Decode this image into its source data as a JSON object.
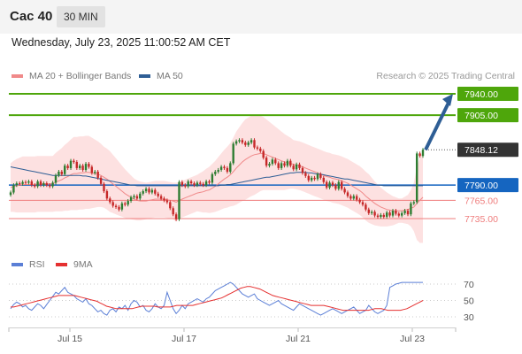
{
  "header": {
    "instrument": "Cac 40",
    "interval": "30 MIN"
  },
  "datetime": "Wednesday, July 23, 2025 11:00:52 AM CET",
  "legend": {
    "bollinger": {
      "label": "MA 20 + Bollinger Bands",
      "color": "#f08a8a"
    },
    "ma50": {
      "label": "MA 50",
      "color": "#2e5e95"
    },
    "rsi": {
      "label": "RSI",
      "color": "#5b7fd6"
    },
    "rsi_ma": {
      "label": "9MA",
      "color": "#e53030"
    }
  },
  "credit": "Research © 2025 Trading Central",
  "colors": {
    "up": "#2e7d32",
    "down": "#c62828",
    "target": "#4ea60b",
    "pivot": "#1565c0",
    "support": "#ef7d7d",
    "arrow": "#2e5e95"
  },
  "chart_data": [
    {
      "type": "candlestick",
      "title": "Cac 40",
      "x_ticks": [
        "Jul 15",
        "Jul 17",
        "Jul 21",
        "Jul 23"
      ],
      "ylim": [
        7700,
        7970
      ],
      "levels": [
        {
          "label": "7940.00",
          "value": 7940,
          "kind": "target"
        },
        {
          "label": "7905.00",
          "value": 7905,
          "kind": "target"
        },
        {
          "label": "7848.12",
          "value": 7848.12,
          "kind": "current"
        },
        {
          "label": "7790.00",
          "value": 7790,
          "kind": "pivot"
        },
        {
          "label": "7765.00",
          "value": 7765,
          "kind": "support"
        },
        {
          "label": "7735.00",
          "value": 7735,
          "kind": "support"
        }
      ],
      "closes": [
        7778,
        7790,
        7793,
        7792,
        7795,
        7794,
        7796,
        7790,
        7788,
        7796,
        7790,
        7793,
        7790,
        7788,
        7794,
        7806,
        7812,
        7808,
        7822,
        7818,
        7830,
        7828,
        7818,
        7822,
        7815,
        7825,
        7820,
        7810,
        7812,
        7802,
        7792,
        7780,
        7768,
        7762,
        7756,
        7754,
        7750,
        7760,
        7758,
        7764,
        7770,
        7772,
        7768,
        7776,
        7780,
        7784,
        7778,
        7782,
        7776,
        7772,
        7768,
        7765,
        7762,
        7752,
        7742,
        7734,
        7795,
        7790,
        7788,
        7796,
        7793,
        7790,
        7794,
        7792,
        7790,
        7796,
        7794,
        7808,
        7812,
        7815,
        7820,
        7818,
        7812,
        7826,
        7858,
        7862,
        7864,
        7860,
        7856,
        7860,
        7864,
        7852,
        7850,
        7846,
        7835,
        7822,
        7825,
        7832,
        7826,
        7818,
        7826,
        7822,
        7830,
        7822,
        7816,
        7824,
        7818,
        7810,
        7805,
        7798,
        7802,
        7800,
        7808,
        7802,
        7795,
        7786,
        7794,
        7790,
        7784,
        7795,
        7784,
        7778,
        7772,
        7768,
        7772,
        7766,
        7762,
        7758,
        7750,
        7744,
        7746,
        7740,
        7738,
        7741,
        7738,
        7745,
        7740,
        7748,
        7743,
        7740,
        7744,
        7748,
        7742,
        7760,
        7762,
        7842,
        7838,
        7848
      ],
      "ma20": [
        7786,
        7788,
        7789,
        7790,
        7791,
        7791,
        7791,
        7791,
        7791,
        7792,
        7792,
        7792,
        7792,
        7792,
        7792,
        7795,
        7797,
        7799,
        7802,
        7804,
        7807,
        7809,
        7809,
        7810,
        7810,
        7811,
        7811,
        7810,
        7809,
        7808,
        7806,
        7803,
        7800,
        7796,
        7792,
        7788,
        7784,
        7780,
        7776,
        7773,
        7770,
        7767,
        7765,
        7764,
        7764,
        7764,
        7765,
        7766,
        7767,
        7767,
        7767,
        7767,
        7766,
        7765,
        7764,
        7762,
        7765,
        7767,
        7769,
        7771,
        7773,
        7775,
        7777,
        7778,
        7779,
        7781,
        7782,
        7785,
        7788,
        7792,
        7796,
        7800,
        7803,
        7807,
        7812,
        7818,
        7823,
        7828,
        7832,
        7835,
        7838,
        7840,
        7841,
        7842,
        7842,
        7840,
        7838,
        7836,
        7834,
        7832,
        7830,
        7828,
        7827,
        7826,
        7824,
        7823,
        7822,
        7820,
        7818,
        7816,
        7814,
        7812,
        7810,
        7808,
        7806,
        7804,
        7803,
        7801,
        7800,
        7799,
        7797,
        7795,
        7793,
        7790,
        7787,
        7784,
        7781,
        7777,
        7772,
        7768,
        7764,
        7760,
        7757,
        7754,
        7752,
        7750,
        7749,
        7748,
        7748,
        7748,
        7748,
        7749,
        7750,
        7752,
        7754,
        7760,
        7765,
        7770
      ],
      "ma50": [
        7820,
        7819,
        7818,
        7817,
        7816,
        7815,
        7814,
        7813,
        7812,
        7811,
        7810,
        7809,
        7808,
        7807,
        7806,
        7806,
        7806,
        7806,
        7806,
        7806,
        7806,
        7806,
        7806,
        7806,
        7805,
        7805,
        7804,
        7803,
        7802,
        7801,
        7800,
        7799,
        7798,
        7797,
        7796,
        7795,
        7794,
        7793,
        7792,
        7791,
        7790,
        7790,
        7789,
        7789,
        7789,
        7789,
        7789,
        7789,
        7789,
        7789,
        7789,
        7789,
        7789,
        7789,
        7789,
        7789,
        7789,
        7789,
        7789,
        7789,
        7789,
        7789,
        7789,
        7789,
        7789,
        7789,
        7789,
        7789,
        7789,
        7789,
        7790,
        7790,
        7791,
        7791,
        7792,
        7793,
        7794,
        7795,
        7796,
        7797,
        7798,
        7799,
        7800,
        7801,
        7802,
        7803,
        7803,
        7804,
        7805,
        7806,
        7807,
        7808,
        7809,
        7810,
        7810,
        7811,
        7811,
        7811,
        7811,
        7810,
        7810,
        7809,
        7808,
        7808,
        7807,
        7806,
        7805,
        7804,
        7803,
        7802,
        7801,
        7800,
        7800,
        7799,
        7798,
        7797,
        7796,
        7795,
        7794,
        7793,
        7792,
        7791,
        7790,
        7790,
        7789,
        7789,
        7789,
        7789,
        7789,
        7789,
        7789,
        7789,
        7789,
        7789,
        7789,
        7789,
        7789,
        7789
      ],
      "bb_width": [
        40,
        42,
        44,
        45,
        46,
        46,
        46,
        46,
        46,
        46,
        46,
        46,
        46,
        46,
        46,
        48,
        50,
        52,
        54,
        56,
        58,
        60,
        60,
        60,
        60,
        60,
        60,
        58,
        56,
        54,
        52,
        50,
        50,
        50,
        48,
        46,
        44,
        42,
        40,
        38,
        36,
        34,
        33,
        32,
        31,
        30,
        30,
        30,
        30,
        30,
        30,
        30,
        30,
        30,
        30,
        32,
        30,
        30,
        30,
        30,
        30,
        30,
        30,
        32,
        34,
        36,
        38,
        40,
        42,
        44,
        46,
        48,
        50,
        52,
        56,
        60,
        62,
        64,
        66,
        66,
        66,
        66,
        64,
        62,
        60,
        58,
        56,
        54,
        52,
        50,
        48,
        46,
        44,
        42,
        40,
        40,
        40,
        40,
        40,
        40,
        40,
        40,
        40,
        40,
        40,
        40,
        40,
        40,
        40,
        40,
        40,
        40,
        40,
        40,
        40,
        40,
        40,
        40,
        40,
        40,
        38,
        36,
        34,
        32,
        30,
        28,
        26,
        24,
        22,
        20,
        20,
        22,
        24,
        30,
        40,
        60,
        70,
        75
      ]
    },
    {
      "type": "line",
      "title": "RSI",
      "ylim": [
        20,
        80
      ],
      "y_ticks": [
        "70",
        "50",
        "30"
      ],
      "series": [
        {
          "name": "RSI",
          "values": [
            40,
            45,
            48,
            46,
            42,
            44,
            40,
            38,
            42,
            46,
            44,
            40,
            45,
            50,
            55,
            60,
            58,
            62,
            66,
            60,
            58,
            56,
            52,
            50,
            48,
            52,
            46,
            44,
            40,
            36,
            38,
            34,
            32,
            38,
            40,
            36,
            42,
            40,
            44,
            38,
            46,
            50,
            48,
            42,
            44,
            38,
            36,
            40,
            46,
            42,
            40,
            44,
            60,
            50,
            40,
            34,
            38,
            44,
            40,
            46,
            48,
            50,
            52,
            50,
            48,
            52,
            54,
            58,
            62,
            64,
            66,
            68,
            70,
            72,
            70,
            66,
            62,
            58,
            56,
            54,
            56,
            58,
            52,
            50,
            48,
            46,
            44,
            46,
            48,
            50,
            46,
            44,
            42,
            40,
            38,
            42,
            46,
            44,
            42,
            40,
            38,
            36,
            34,
            32,
            34,
            36,
            38,
            40,
            38,
            36,
            34,
            36,
            38,
            40,
            42,
            38,
            34,
            36,
            38,
            44,
            40,
            36,
            34,
            36,
            38,
            44,
            66,
            68,
            70,
            71,
            72,
            72,
            72,
            72,
            72,
            72,
            72,
            72
          ]
        },
        {
          "name": "9MA",
          "values": [
            42,
            42,
            43,
            44,
            45,
            46,
            47,
            48,
            49,
            50,
            51,
            52,
            53,
            54,
            55,
            56,
            56,
            56,
            56,
            56,
            56,
            55,
            54,
            53,
            52,
            51,
            50,
            49,
            47,
            45,
            43,
            42,
            41,
            40,
            40,
            40,
            40,
            40,
            40,
            41,
            42,
            43,
            43,
            43,
            43,
            43,
            42,
            42,
            42,
            42,
            42,
            43,
            44,
            44,
            44,
            44,
            44,
            44,
            45,
            46,
            47,
            48,
            49,
            50,
            51,
            52,
            53,
            55,
            57,
            59,
            61,
            63,
            65,
            66,
            67,
            67,
            66,
            65,
            64,
            62,
            60,
            58,
            56,
            55,
            54,
            53,
            52,
            51,
            50,
            49,
            48,
            47,
            46,
            45,
            44,
            44,
            44,
            44,
            44,
            43,
            42,
            41,
            40,
            39,
            38,
            38,
            38,
            38,
            38,
            38,
            38,
            38,
            38,
            39,
            40,
            40,
            40,
            39,
            38,
            38,
            38,
            38,
            38,
            39,
            40,
            42,
            44,
            46,
            48,
            50
          ]
        }
      ]
    }
  ]
}
